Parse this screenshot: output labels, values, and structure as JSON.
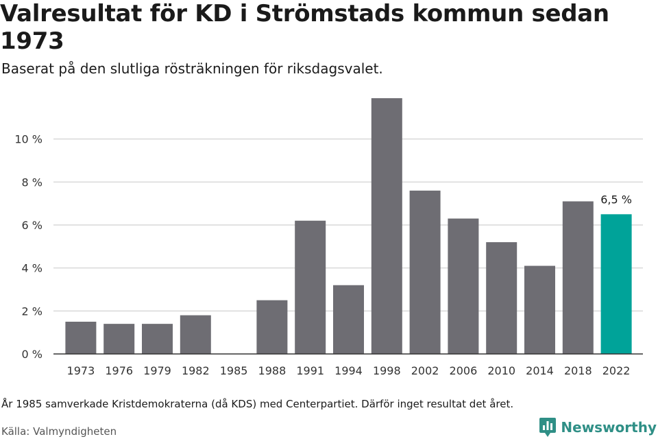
{
  "header": {
    "title": "Valresultat för KD i Strömstads kommun sedan 1973",
    "subtitle": "Baserat på den slutliga rösträkningen för riksdagsvalet."
  },
  "footer": {
    "note": "År 1985 samverkade Kristdemokraterna (då KDS) med Centerpartiet. Därför inget resultat det året.",
    "source": "Källa: Valmyndigheten",
    "brand": "Newsworthy"
  },
  "colors": {
    "bar": "#6e6d73",
    "highlight": "#00a399",
    "grid": "#d9d9d9",
    "axis": "#333333",
    "brand": "#2f8f86"
  },
  "chart_data": {
    "type": "bar",
    "title": "Valresultat för KD i Strömstads kommun sedan 1973",
    "xlabel": "",
    "ylabel": "",
    "categories": [
      "1973",
      "1976",
      "1979",
      "1982",
      "1985",
      "1988",
      "1991",
      "1994",
      "1998",
      "2002",
      "2006",
      "2010",
      "2014",
      "2018",
      "2022"
    ],
    "values": [
      1.5,
      1.4,
      1.4,
      1.8,
      null,
      2.5,
      6.2,
      3.2,
      11.9,
      7.6,
      6.3,
      5.2,
      4.1,
      7.1,
      6.5
    ],
    "ylim": [
      0,
      12
    ],
    "yticks": [
      0,
      2,
      4,
      6,
      8,
      10
    ],
    "ytick_labels": [
      "0 %",
      "2 %",
      "4 %",
      "6 %",
      "8 %",
      "10 %"
    ],
    "grid": true,
    "highlight_index": 14,
    "data_labels": [
      {
        "index": 14,
        "text": "6,5 %"
      }
    ]
  }
}
